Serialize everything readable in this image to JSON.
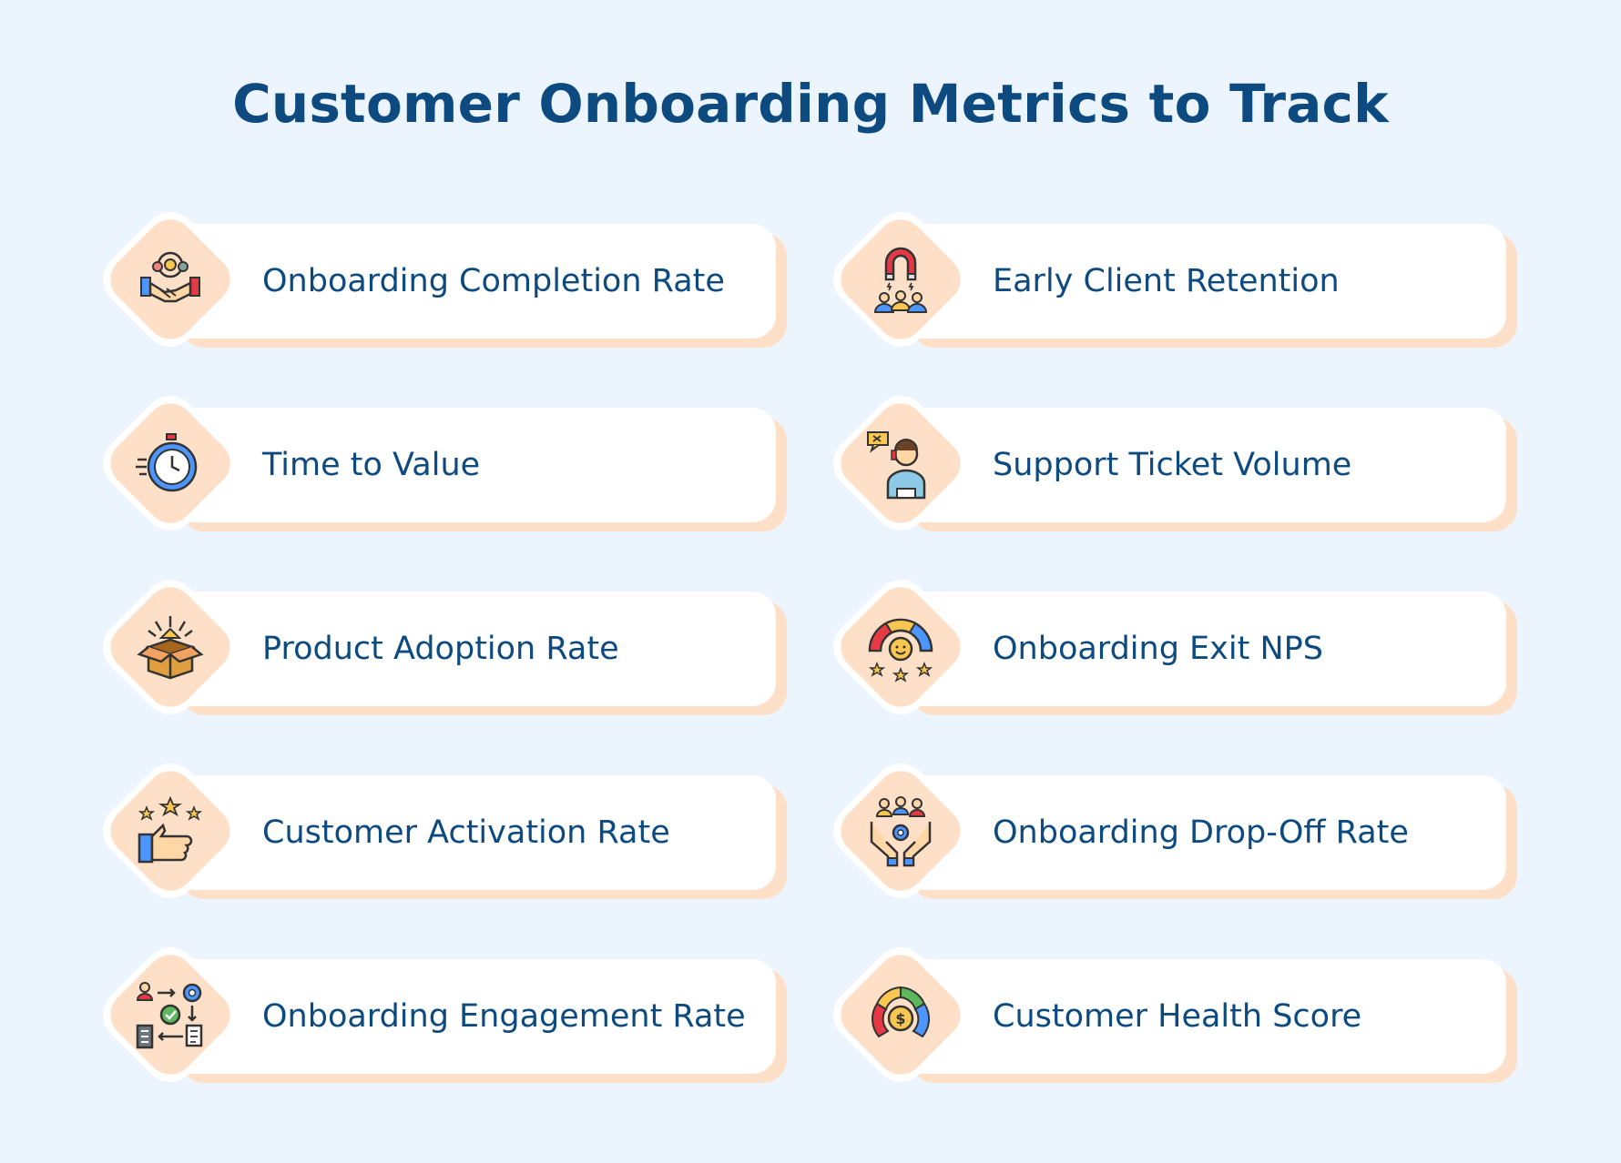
{
  "title": "Customer Onboarding Metrics to Track",
  "colors": {
    "background": "#ecf5fd",
    "title": "#0d4a80",
    "card": "#ffffff",
    "accent_peach": "#fde0c7"
  },
  "metrics": [
    {
      "label": "Onboarding Completion Rate",
      "icon": "handshake-team-icon"
    },
    {
      "label": "Early Client Retention",
      "icon": "magnet-customers-icon"
    },
    {
      "label": "Time to Value",
      "icon": "stopwatch-icon"
    },
    {
      "label": "Support Ticket Volume",
      "icon": "support-agent-icon"
    },
    {
      "label": "Product Adoption Rate",
      "icon": "open-box-icon"
    },
    {
      "label": "Onboarding Exit NPS",
      "icon": "satisfaction-gauge-icon"
    },
    {
      "label": "Customer Activation Rate",
      "icon": "thumbs-up-stars-icon"
    },
    {
      "label": "Onboarding Drop-Off Rate",
      "icon": "hands-people-gear-icon"
    },
    {
      "label": "Onboarding Engagement Rate",
      "icon": "workflow-cycle-icon"
    },
    {
      "label": "Customer Health Score",
      "icon": "health-gauge-icon"
    }
  ]
}
